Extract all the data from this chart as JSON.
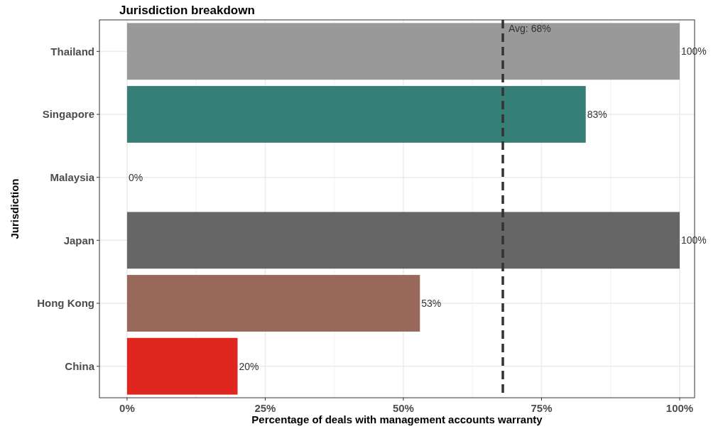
{
  "chart_data": {
    "type": "bar",
    "orientation": "horizontal",
    "title": "Jurisdiction breakdown",
    "xlabel": "Percentage of deals with management accounts warranty",
    "ylabel": "Jurisdiction",
    "categories": [
      "Thailand",
      "Singapore",
      "Malaysia",
      "Japan",
      "Hong Kong",
      "China"
    ],
    "values": [
      100,
      83,
      0,
      100,
      53,
      20
    ],
    "colors": [
      "#999999",
      "#357f77",
      null,
      "#666666",
      "#98685a",
      "#e0271f"
    ],
    "value_labels": [
      "100%",
      "83%",
      "0%",
      "100%",
      "53%",
      "20%"
    ],
    "xlim": [
      -5,
      102.7
    ],
    "xticks": [
      {
        "value": 0,
        "label": "0%"
      },
      {
        "value": 25,
        "label": "25%"
      },
      {
        "value": 50,
        "label": "50%"
      },
      {
        "value": 75,
        "label": "75%"
      },
      {
        "value": 100,
        "label": "100%"
      }
    ],
    "ref_lines": [
      {
        "axis": "x",
        "value": 68,
        "label": "Avg: 68%",
        "color": "#333333",
        "line_style": "dashed"
      }
    ],
    "grid": true
  }
}
